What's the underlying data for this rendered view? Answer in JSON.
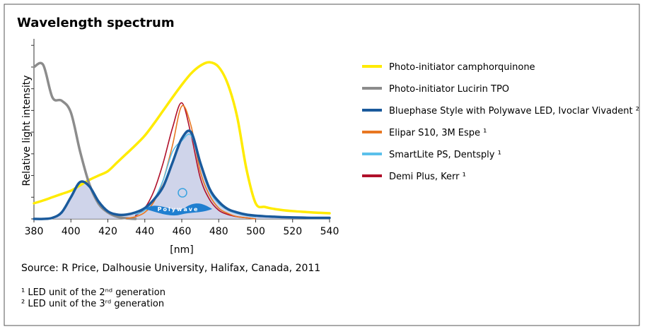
{
  "chart_data": {
    "type": "line",
    "title": "Wavelength spectrum",
    "y_label": "Relative light intensity",
    "x_label": "[nm]",
    "source": "Source: R Price, Dalhousie University, Halifax, Canada, 2011",
    "footnotes": [
      "¹ LED unit of the 2ⁿᵈ generation",
      "² LED unit of the 3ʳᵈ generation"
    ],
    "annotation": "Polywave",
    "x": [
      380,
      385,
      390,
      395,
      400,
      405,
      410,
      415,
      420,
      425,
      430,
      435,
      440,
      445,
      450,
      455,
      460,
      465,
      470,
      475,
      480,
      485,
      490,
      495,
      500,
      505,
      510,
      515,
      520,
      525,
      530,
      535,
      540
    ],
    "xlim": [
      380,
      540
    ],
    "xticks": [
      380,
      400,
      420,
      440,
      460,
      480,
      500,
      520,
      540
    ],
    "ylim": [
      0,
      8.3
    ],
    "yticks": [
      0,
      1,
      2,
      3,
      4,
      5,
      6,
      7,
      8
    ],
    "fill_series": 2,
    "fill_color": "#c7cde6",
    "series": [
      {
        "name": "Photo-initiator camphorquinone",
        "color": "#ffeb00",
        "width": 3.5,
        "values": [
          0.72,
          0.85,
          1.0,
          1.15,
          1.3,
          1.55,
          1.8,
          2.0,
          2.2,
          2.6,
          3.0,
          3.4,
          3.84,
          4.4,
          5.0,
          5.6,
          6.18,
          6.7,
          7.06,
          7.22,
          7.0,
          6.2,
          4.7,
          2.3,
          0.72,
          0.55,
          0.46,
          0.4,
          0.36,
          0.33,
          0.3,
          0.28,
          0.26
        ]
      },
      {
        "name": "Photo-initiator Lucirin TPO",
        "color": "#8c8c8c",
        "width": 3.5,
        "values": [
          7.0,
          7.1,
          5.6,
          5.45,
          4.9,
          3.1,
          1.6,
          0.7,
          0.3,
          0.1,
          0.03,
          0,
          null,
          null,
          null,
          null,
          null,
          null,
          null,
          null,
          null,
          null,
          null,
          null,
          null,
          null,
          null,
          null,
          null,
          null,
          null,
          null,
          null
        ]
      },
      {
        "name": "Bluephase Style with Polywave LED, Ivoclar Vivadent ²",
        "color": "#1a5a9c",
        "width": 3.5,
        "values": [
          0,
          0,
          0.05,
          0.3,
          1.0,
          1.7,
          1.5,
          0.8,
          0.35,
          0.2,
          0.2,
          0.3,
          0.5,
          0.9,
          1.5,
          2.6,
          3.7,
          4.0,
          2.6,
          1.4,
          0.8,
          0.45,
          0.3,
          0.2,
          0.15,
          0.12,
          0.1,
          0.08,
          0.07,
          0.06,
          0.05,
          0.05,
          0.05
        ]
      },
      {
        "name": "Elipar S10, 3M Espe ¹",
        "color": "#e87722",
        "width": 1.6,
        "values": [
          null,
          null,
          null,
          null,
          null,
          null,
          null,
          null,
          null,
          null,
          0.02,
          0.1,
          0.3,
          0.8,
          1.8,
          3.4,
          5.2,
          4.3,
          2.2,
          1.1,
          0.5,
          0.25,
          0.1,
          0.05,
          0,
          null,
          null,
          null,
          null,
          null,
          null,
          null,
          null
        ]
      },
      {
        "name": "SmartLite PS, Dentsply ¹",
        "color": "#5bc0eb",
        "width": 1.6,
        "values": [
          null,
          null,
          null,
          null,
          null,
          null,
          null,
          null,
          null,
          null,
          null,
          0.2,
          0.4,
          0.9,
          1.8,
          3.1,
          3.6,
          3.85,
          2.5,
          1.3,
          0.7,
          0.4,
          0.25,
          0.15,
          0.1,
          null,
          null,
          null,
          null,
          null,
          null,
          null,
          null
        ]
      },
      {
        "name": "Demi Plus, Kerr ¹",
        "color": "#b0102a",
        "width": 1.6,
        "values": [
          null,
          null,
          null,
          null,
          null,
          null,
          null,
          null,
          null,
          null,
          null,
          0.15,
          0.5,
          1.3,
          2.6,
          4.2,
          5.35,
          3.9,
          1.9,
          0.9,
          0.4,
          0.2,
          0.1,
          0.05,
          0,
          null,
          null,
          null,
          null,
          null,
          null,
          null,
          null
        ]
      }
    ],
    "draw_order": [
      0,
      1,
      5,
      3,
      4,
      2
    ]
  }
}
